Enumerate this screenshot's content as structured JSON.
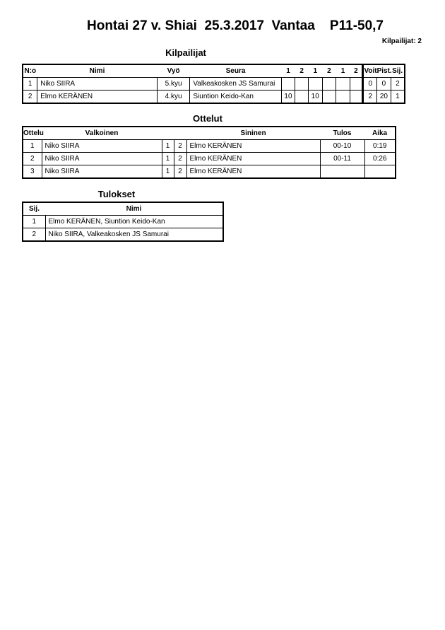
{
  "header": {
    "title": "Hontai 27 v. Shiai  25.3.2017  Vantaa    P11-50,7",
    "competitor_count": "Kilpailijat: 2"
  },
  "competitors": {
    "title": "Kilpailijat",
    "columns": [
      "N:o",
      "Nimi",
      "Vyö",
      "Seura",
      "1",
      "2",
      "1",
      "2",
      "1",
      "2",
      "Voit.",
      "Pist.",
      "Sij."
    ],
    "rows": [
      [
        "1",
        "Niko SIIRA",
        "5.kyu",
        "Valkeakosken JS Samurai",
        "",
        "",
        "",
        "",
        "",
        "",
        "0",
        "0",
        "2"
      ],
      [
        "2",
        "Elmo KERÄNEN",
        "4.kyu",
        "Siuntion Keido-Kan",
        "10",
        "",
        "10",
        "",
        "",
        "",
        "2",
        "20",
        "1"
      ]
    ]
  },
  "matches": {
    "title": "Ottelut",
    "columns": [
      "Ottelu",
      "Valkoinen",
      "",
      "",
      "Sininen",
      "Tulos",
      "Aika"
    ],
    "rows": [
      [
        "1",
        "Niko SIIRA",
        "1",
        "2",
        "Elmo KERÄNEN",
        "00-10",
        "0:19"
      ],
      [
        "2",
        "Niko SIIRA",
        "1",
        "2",
        "Elmo KERÄNEN",
        "00-11",
        "0:26"
      ],
      [
        "3",
        "Niko SIIRA",
        "1",
        "2",
        "Elmo KERÄNEN",
        "",
        ""
      ]
    ]
  },
  "results": {
    "title": "Tulokset",
    "columns": [
      "Sij.",
      "Nimi"
    ],
    "rows": [
      [
        "1",
        "Elmo KERÄNEN, Siuntion Keido-Kan"
      ],
      [
        "2",
        "Niko SIIRA, Valkeakosken JS Samurai"
      ]
    ]
  }
}
